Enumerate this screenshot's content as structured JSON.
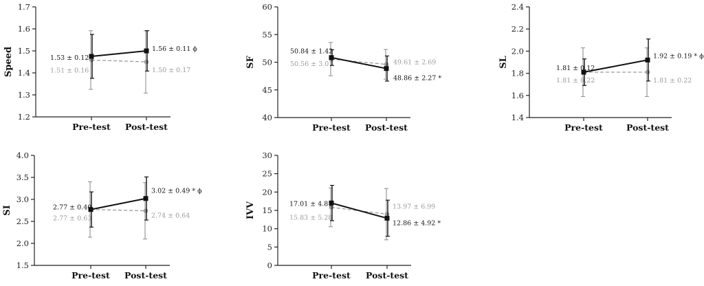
{
  "colors": {
    "group_a": "#111111",
    "group_b": "#9a9a9a",
    "axis": "#222222"
  },
  "chart_data": [
    {
      "type": "line",
      "ylabel": "Speed",
      "categories": [
        "Pre-test",
        "Post-test"
      ],
      "ylim": [
        1.2,
        1.8
      ],
      "yticks": [
        "1.2",
        "1.3",
        "1.4",
        "1.5",
        "1.6",
        "1.7"
      ],
      "series": [
        {
          "style": "solid",
          "marker": "square",
          "values": [
            1.53,
            1.56
          ],
          "errors": [
            0.12,
            0.11
          ],
          "labels": [
            "1.53 ± 0.12",
            "1.56 ± 0.11 ϕ"
          ]
        },
        {
          "style": "dashed",
          "marker": "circle",
          "values": [
            1.51,
            1.5
          ],
          "errors": [
            0.16,
            0.17
          ],
          "labels": [
            "1.51 ± 0.16",
            "1.50 ± 0.17"
          ]
        }
      ]
    },
    {
      "type": "line",
      "ylabel": "SF",
      "categories": [
        "Pre-test",
        "Post-test"
      ],
      "ylim": [
        40,
        60
      ],
      "yticks": [
        "40",
        "45",
        "50",
        "55",
        "60"
      ],
      "series": [
        {
          "style": "solid",
          "marker": "square",
          "values": [
            50.84,
            48.86
          ],
          "errors": [
            1.42,
            2.27
          ],
          "labels": [
            "50.84 ± 1.42",
            "48.86 ± 2.27 *"
          ]
        },
        {
          "style": "dashed",
          "marker": "circle",
          "values": [
            50.56,
            49.61
          ],
          "errors": [
            3.01,
            2.69
          ],
          "labels": [
            "50.56 ± 3.01",
            "49.61 ± 2.69"
          ]
        }
      ]
    },
    {
      "type": "line",
      "ylabel": "SL",
      "categories": [
        "Pre-test",
        "Post-test"
      ],
      "ylim": [
        1.4,
        2.4
      ],
      "yticks": [
        "1.4",
        "1.6",
        "1.8",
        "2.0",
        "2.2",
        "2.4"
      ],
      "series": [
        {
          "style": "solid",
          "marker": "square",
          "values": [
            1.81,
            1.92
          ],
          "errors": [
            0.12,
            0.19
          ],
          "labels": [
            "1.81 ± 0.12",
            "1.92 ± 0.19 * ϕ"
          ]
        },
        {
          "style": "dashed",
          "marker": "circle",
          "values": [
            1.81,
            1.81
          ],
          "errors": [
            0.22,
            0.22
          ],
          "labels": [
            "1.81 ± 0.22",
            "1.81 ± 0.22"
          ]
        }
      ]
    },
    {
      "type": "line",
      "ylabel": "SI",
      "categories": [
        "Pre-test",
        "Post-test"
      ],
      "ylim": [
        1.5,
        4.0
      ],
      "yticks": [
        "1.5",
        "2.0",
        "2.5",
        "3.0",
        "3.5",
        "4.0"
      ],
      "series": [
        {
          "style": "solid",
          "marker": "square",
          "values": [
            2.77,
            3.02
          ],
          "errors": [
            0.4,
            0.49
          ],
          "labels": [
            "2.77 ± 0.40",
            "3.02 ± 0.49 * ϕ"
          ]
        },
        {
          "style": "dashed",
          "marker": "circle",
          "values": [
            2.77,
            2.74
          ],
          "errors": [
            0.63,
            0.64
          ],
          "labels": [
            "2.77 ± 0.63",
            "2.74 ± 0.64"
          ]
        }
      ]
    },
    {
      "type": "line",
      "ylabel": "IVV",
      "categories": [
        "Pre-test",
        "Post-test"
      ],
      "ylim": [
        0,
        30
      ],
      "yticks": [
        "0",
        "5",
        "10",
        "15",
        "20",
        "25",
        "30"
      ],
      "series": [
        {
          "style": "solid",
          "marker": "square",
          "values": [
            17.01,
            12.86
          ],
          "errors": [
            4.81,
            4.92
          ],
          "labels": [
            "17.01 ± 4.81",
            "12.86 ± 4.92 *"
          ]
        },
        {
          "style": "dashed",
          "marker": "circle",
          "values": [
            15.83,
            13.97
          ],
          "errors": [
            5.28,
            6.99
          ],
          "labels": [
            "15.83 ± 5.28",
            "13.97 ± 6.99"
          ]
        }
      ]
    }
  ]
}
